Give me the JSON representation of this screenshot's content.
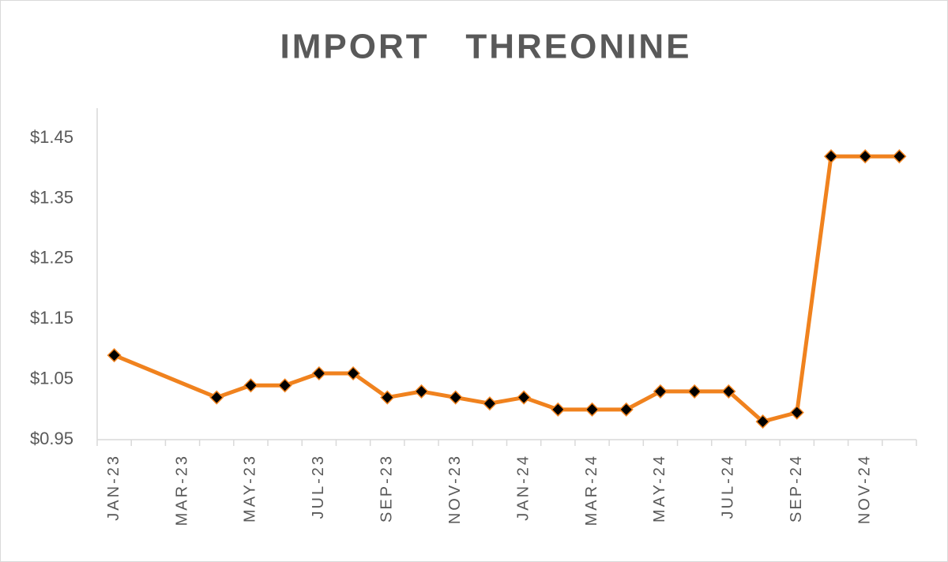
{
  "chart_data": {
    "type": "line",
    "title": "IMPORT   THREONINE",
    "categories": [
      "JAN-23",
      null,
      "MAR-23",
      null,
      "MAY-23",
      null,
      "JUL-23",
      null,
      "SEP-23",
      null,
      "NOV-23",
      null,
      "JAN-24",
      null,
      "MAR-24",
      null,
      "MAY-24",
      null,
      "JUL-24",
      null,
      "SEP-24",
      null,
      "NOV-24",
      null
    ],
    "series": [
      {
        "color": "#f0821e",
        "marker_color": "#000000",
        "values": [
          1.09,
          null,
          null,
          1.02,
          1.04,
          1.04,
          1.06,
          1.06,
          1.02,
          1.03,
          1.02,
          1.01,
          1.02,
          1.0,
          1.0,
          1.0,
          1.03,
          1.03,
          1.03,
          0.98,
          0.995,
          1.42,
          1.42,
          1.42
        ]
      }
    ],
    "span_gaps": true,
    "ylim": [
      0.95,
      1.5
    ],
    "yticks": [
      {
        "value": 0.95,
        "label": "$0.95"
      },
      {
        "value": 1.05,
        "label": "$1.05"
      },
      {
        "value": 1.15,
        "label": "$1.15"
      },
      {
        "value": 1.25,
        "label": "$1.25"
      },
      {
        "value": 1.35,
        "label": "$1.35"
      },
      {
        "value": 1.45,
        "label": "$1.45"
      }
    ],
    "grid": false
  }
}
